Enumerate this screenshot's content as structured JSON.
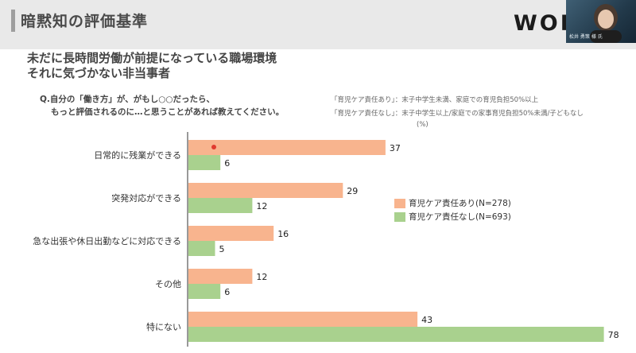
{
  "header": {
    "title": "暗黙知の評価基準",
    "logo_text": "WOR",
    "video_caption": "松井 勇策 様 氏"
  },
  "headline": {
    "line1": "未だに長時間労働が前提になっている職場環境",
    "line2": "それに気づかない非当事者"
  },
  "question": {
    "line1": "Q.自分の「働き方」が、がもし○○だったら、",
    "line2": "もっと評価されるのに…と思うことがあれば教えてください。"
  },
  "definitions": {
    "line1": "「育児ケア責任あり」：末子中学生未満、家庭での育児負担50%以上",
    "line2": "「育児ケア責任なし」：末子中学生以上/家庭での家事育児負担50%未満/子どもなし"
  },
  "colors": {
    "series_with_care": "#f8b48e",
    "series_without_care": "#a9d18e",
    "axis": "#333333"
  },
  "chart_data": {
    "type": "bar",
    "orientation": "horizontal",
    "unit": "(%)",
    "categories": [
      "日常的に残業ができる",
      "突発対応ができる",
      "急な出張や休日出勤などに対応できる",
      "その他",
      "特にない"
    ],
    "series": [
      {
        "name": "育児ケア責任あり(N=278)",
        "values": [
          37,
          29,
          16,
          12,
          43
        ]
      },
      {
        "name": "育児ケア責任なし(N=693)",
        "values": [
          6,
          12,
          5,
          6,
          78
        ]
      }
    ],
    "xlim": [
      0,
      80
    ],
    "legend_position": "right",
    "grid": false
  }
}
